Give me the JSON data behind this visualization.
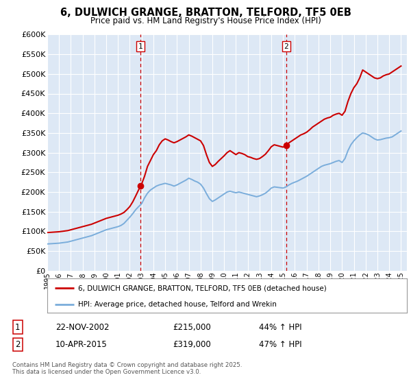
{
  "title": "6, DULWICH GRANGE, BRATTON, TELFORD, TF5 0EB",
  "subtitle": "Price paid vs. HM Land Registry's House Price Index (HPI)",
  "ylim": [
    0,
    600000
  ],
  "yticks": [
    0,
    50000,
    100000,
    150000,
    200000,
    250000,
    300000,
    350000,
    400000,
    450000,
    500000,
    550000,
    600000
  ],
  "xlim_start": 1995.0,
  "xlim_end": 2025.5,
  "red_line_color": "#cc0000",
  "blue_line_color": "#7aaddb",
  "vline_color": "#cc0000",
  "transaction1_x": 2002.9,
  "transaction1_y": 215000,
  "transaction2_x": 2015.27,
  "transaction2_y": 319000,
  "legend1_label": "6, DULWICH GRANGE, BRATTON, TELFORD, TF5 0EB (detached house)",
  "legend2_label": "HPI: Average price, detached house, Telford and Wrekin",
  "table_row1": [
    "1",
    "22-NOV-2002",
    "£215,000",
    "44% ↑ HPI"
  ],
  "table_row2": [
    "2",
    "10-APR-2015",
    "£319,000",
    "47% ↑ HPI"
  ],
  "footer": "Contains HM Land Registry data © Crown copyright and database right 2025.\nThis data is licensed under the Open Government Licence v3.0.",
  "background_color": "#ffffff",
  "plot_bg_color": "#dde8f5",
  "grid_color": "#ffffff",
  "hpi_red": {
    "years": [
      1995.0,
      1995.25,
      1995.5,
      1995.75,
      1996.0,
      1996.25,
      1996.5,
      1996.75,
      1997.0,
      1997.25,
      1997.5,
      1997.75,
      1998.0,
      1998.25,
      1998.5,
      1998.75,
      1999.0,
      1999.25,
      1999.5,
      1999.75,
      2000.0,
      2000.25,
      2000.5,
      2000.75,
      2001.0,
      2001.25,
      2001.5,
      2001.75,
      2002.0,
      2002.25,
      2002.5,
      2002.9,
      2003.0,
      2003.25,
      2003.5,
      2003.75,
      2004.0,
      2004.25,
      2004.5,
      2004.75,
      2005.0,
      2005.25,
      2005.5,
      2005.75,
      2006.0,
      2006.25,
      2006.5,
      2006.75,
      2007.0,
      2007.25,
      2007.5,
      2007.75,
      2008.0,
      2008.25,
      2008.5,
      2008.75,
      2009.0,
      2009.25,
      2009.5,
      2009.75,
      2010.0,
      2010.25,
      2010.5,
      2010.75,
      2011.0,
      2011.25,
      2011.5,
      2011.75,
      2012.0,
      2012.25,
      2012.5,
      2012.75,
      2013.0,
      2013.25,
      2013.5,
      2013.75,
      2014.0,
      2014.25,
      2014.5,
      2014.75,
      2015.0,
      2015.27,
      2015.27,
      2015.5,
      2015.75,
      2016.0,
      2016.25,
      2016.5,
      2016.75,
      2017.0,
      2017.25,
      2017.5,
      2017.75,
      2018.0,
      2018.25,
      2018.5,
      2018.75,
      2019.0,
      2019.25,
      2019.5,
      2019.75,
      2020.0,
      2020.25,
      2020.5,
      2020.75,
      2021.0,
      2021.25,
      2021.5,
      2021.75,
      2022.0,
      2022.25,
      2022.5,
      2022.75,
      2023.0,
      2023.25,
      2023.5,
      2023.75,
      2024.0,
      2024.25,
      2024.5,
      2024.75,
      2025.0
    ],
    "values": [
      97000,
      97500,
      98000,
      98500,
      99000,
      100000,
      101000,
      102000,
      104000,
      106000,
      108000,
      110000,
      112000,
      114000,
      116000,
      118000,
      121000,
      124000,
      127000,
      130000,
      133000,
      135000,
      137000,
      139000,
      141000,
      144000,
      148000,
      155000,
      163000,
      175000,
      190000,
      215000,
      220000,
      240000,
      265000,
      280000,
      295000,
      305000,
      320000,
      330000,
      335000,
      332000,
      328000,
      325000,
      328000,
      332000,
      336000,
      340000,
      345000,
      342000,
      338000,
      334000,
      330000,
      318000,
      295000,
      275000,
      265000,
      270000,
      278000,
      285000,
      292000,
      300000,
      305000,
      300000,
      295000,
      300000,
      298000,
      295000,
      290000,
      288000,
      285000,
      283000,
      285000,
      290000,
      296000,
      305000,
      315000,
      320000,
      318000,
      316000,
      314000,
      319000,
      319000,
      325000,
      330000,
      335000,
      340000,
      345000,
      348000,
      352000,
      358000,
      365000,
      370000,
      375000,
      380000,
      385000,
      388000,
      390000,
      395000,
      398000,
      400000,
      395000,
      405000,
      430000,
      450000,
      465000,
      475000,
      490000,
      510000,
      505000,
      500000,
      495000,
      490000,
      488000,
      490000,
      495000,
      498000,
      500000,
      505000,
      510000,
      515000,
      520000
    ]
  },
  "hpi_blue": {
    "years": [
      1995.0,
      1995.25,
      1995.5,
      1995.75,
      1996.0,
      1996.25,
      1996.5,
      1996.75,
      1997.0,
      1997.25,
      1997.5,
      1997.75,
      1998.0,
      1998.25,
      1998.5,
      1998.75,
      1999.0,
      1999.25,
      1999.5,
      1999.75,
      2000.0,
      2000.25,
      2000.5,
      2000.75,
      2001.0,
      2001.25,
      2001.5,
      2001.75,
      2002.0,
      2002.25,
      2002.5,
      2002.75,
      2003.0,
      2003.25,
      2003.5,
      2003.75,
      2004.0,
      2004.25,
      2004.5,
      2004.75,
      2005.0,
      2005.25,
      2005.5,
      2005.75,
      2006.0,
      2006.25,
      2006.5,
      2006.75,
      2007.0,
      2007.25,
      2007.5,
      2007.75,
      2008.0,
      2008.25,
      2008.5,
      2008.75,
      2009.0,
      2009.25,
      2009.5,
      2009.75,
      2010.0,
      2010.25,
      2010.5,
      2010.75,
      2011.0,
      2011.25,
      2011.5,
      2011.75,
      2012.0,
      2012.25,
      2012.5,
      2012.75,
      2013.0,
      2013.25,
      2013.5,
      2013.75,
      2014.0,
      2014.25,
      2014.5,
      2014.75,
      2015.0,
      2015.25,
      2015.5,
      2015.75,
      2016.0,
      2016.25,
      2016.5,
      2016.75,
      2017.0,
      2017.25,
      2017.5,
      2017.75,
      2018.0,
      2018.25,
      2018.5,
      2018.75,
      2019.0,
      2019.25,
      2019.5,
      2019.75,
      2020.0,
      2020.25,
      2020.5,
      2020.75,
      2021.0,
      2021.25,
      2021.5,
      2021.75,
      2022.0,
      2022.25,
      2022.5,
      2022.75,
      2023.0,
      2023.25,
      2023.5,
      2023.75,
      2024.0,
      2024.25,
      2024.5,
      2024.75,
      2025.0
    ],
    "values": [
      68000,
      68500,
      69000,
      69500,
      70000,
      71000,
      72000,
      73000,
      75000,
      77000,
      79000,
      81000,
      83000,
      85000,
      87000,
      89000,
      92000,
      95000,
      98000,
      101000,
      104000,
      106000,
      108000,
      110000,
      112000,
      115000,
      120000,
      128000,
      136000,
      145000,
      155000,
      163000,
      170000,
      185000,
      197000,
      205000,
      210000,
      215000,
      218000,
      220000,
      222000,
      220000,
      218000,
      215000,
      218000,
      222000,
      226000,
      230000,
      235000,
      232000,
      228000,
      225000,
      220000,
      210000,
      196000,
      183000,
      176000,
      180000,
      185000,
      190000,
      195000,
      200000,
      202000,
      200000,
      198000,
      200000,
      198000,
      196000,
      194000,
      192000,
      190000,
      188000,
      190000,
      193000,
      197000,
      203000,
      210000,
      213000,
      212000,
      211000,
      210000,
      213000,
      218000,
      222000,
      225000,
      228000,
      232000,
      236000,
      240000,
      245000,
      250000,
      255000,
      260000,
      265000,
      268000,
      270000,
      272000,
      275000,
      278000,
      280000,
      275000,
      285000,
      305000,
      320000,
      330000,
      338000,
      345000,
      350000,
      348000,
      345000,
      340000,
      335000,
      332000,
      333000,
      335000,
      337000,
      338000,
      340000,
      345000,
      350000,
      355000
    ]
  }
}
